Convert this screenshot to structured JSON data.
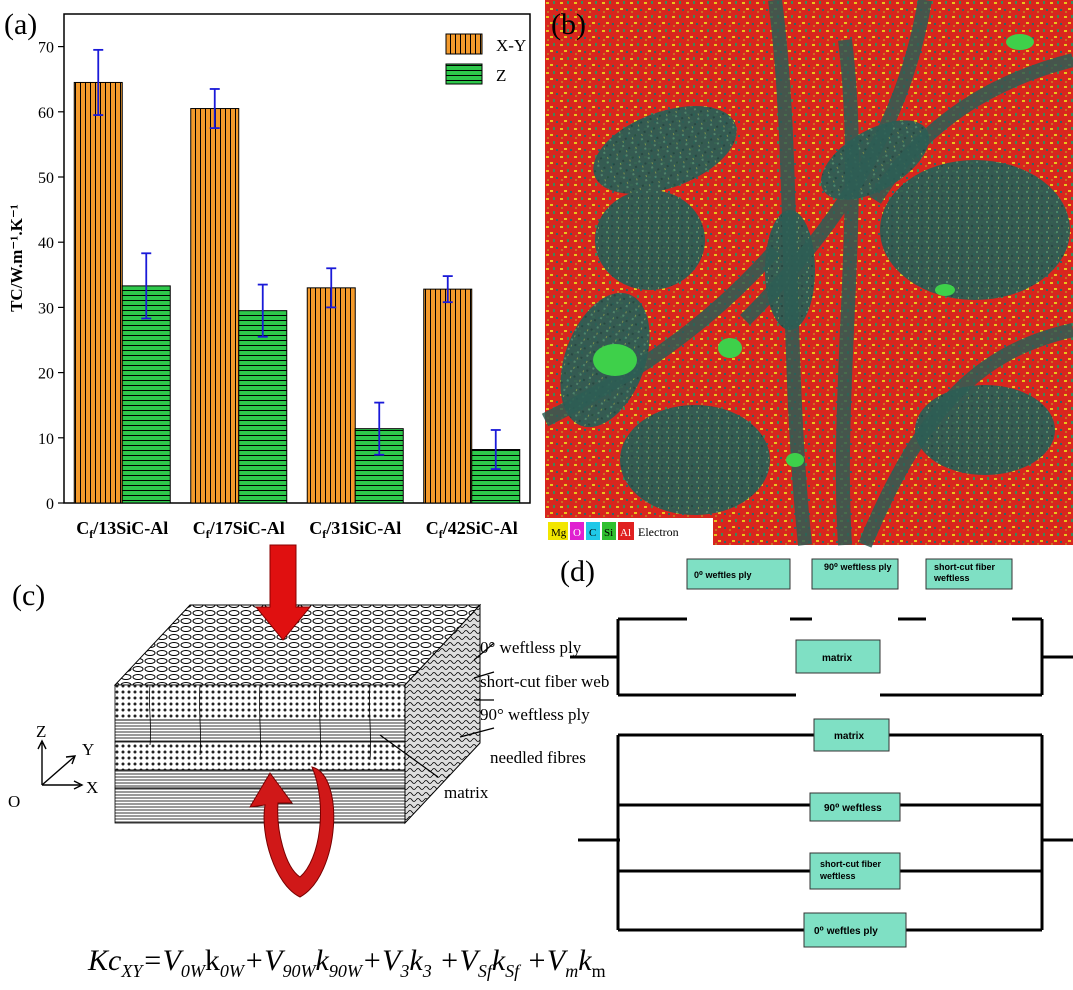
{
  "panel_a": {
    "label": "(a)",
    "chart_data": {
      "type": "bar",
      "categories": [
        "Cf/13SiC-Al",
        "Cf/17SiC-Al",
        "Cf/31SiC-Al",
        "Cf/42SiC-Al"
      ],
      "category_parts": [
        {
          "pre": "C",
          "sub": "f",
          "post": "/13SiC-Al"
        },
        {
          "pre": "C",
          "sub": "f",
          "post": "/17SiC-Al"
        },
        {
          "pre": "C",
          "sub": "f",
          "post": "/31SiC-Al"
        },
        {
          "pre": "C",
          "sub": "f",
          "post": "/42SiC-Al"
        }
      ],
      "series": [
        {
          "name": "X-Y",
          "values": [
            64.5,
            60.5,
            33.0,
            32.8
          ],
          "errors": [
            5.0,
            3.0,
            3.0,
            2.0
          ],
          "color": "#f39a2c",
          "hatch": "vertical"
        },
        {
          "name": "Z",
          "values": [
            33.3,
            29.5,
            11.4,
            8.2
          ],
          "errors": [
            5.0,
            4.0,
            4.0,
            3.0
          ],
          "color": "#2ec84b",
          "hatch": "horizontal"
        }
      ],
      "ylabel": "TC/W.m⁻¹.K⁻¹",
      "ylim": [
        0,
        75
      ],
      "yticks": [
        0,
        10,
        20,
        30,
        40,
        50,
        60,
        70
      ],
      "error_bar_color": "#1a1ad8",
      "legend_position": "top-right"
    }
  },
  "panel_b": {
    "label": "(b)",
    "legend": [
      {
        "text": "Mg",
        "color": "#f2e600"
      },
      {
        "text": "O",
        "color": "#e020d0"
      },
      {
        "text": "C",
        "color": "#20c8e8"
      },
      {
        "text": "Si",
        "color": "#30c030"
      },
      {
        "text": "Al",
        "color": "#e02020"
      },
      {
        "text": "Electron",
        "color": "#ffffff"
      }
    ]
  },
  "panel_c": {
    "label": "(c)",
    "annotations": [
      "0° weftless ply",
      "short-cut fiber web",
      "90° weftless ply",
      "needled fibres",
      "matrix"
    ],
    "axes": {
      "z": "Z",
      "y": "Y",
      "x": "X",
      "o": "O"
    }
  },
  "panel_d": {
    "label": "(d)",
    "top_boxes": [
      "0⁰ weftles ply",
      "90⁰ weftless ply",
      "short-cut fiber weftless"
    ],
    "top_matrix": "matrix",
    "bottom_boxes": [
      "matrix",
      "90⁰ weftless",
      "short-cut fiber weftless",
      "0⁰ weftles ply"
    ],
    "box_color": "#7fe0c4"
  },
  "formula": {
    "lhs": "Kc",
    "lhs_sub": "XY",
    "terms": [
      {
        "v": "V",
        "vs": "0W",
        "k": "k",
        "ks": "0W"
      },
      {
        "v": "V",
        "vs": "90W",
        "k": "k",
        "ks": "90W"
      },
      {
        "v": "V",
        "vs": "3",
        "k": "k",
        "ks": "3"
      },
      {
        "v": "V",
        "vs": "Sf",
        "k": "k",
        "ks": "Sf"
      },
      {
        "v": "V",
        "vs": "m",
        "k": "k",
        "ks": "m"
      }
    ]
  }
}
